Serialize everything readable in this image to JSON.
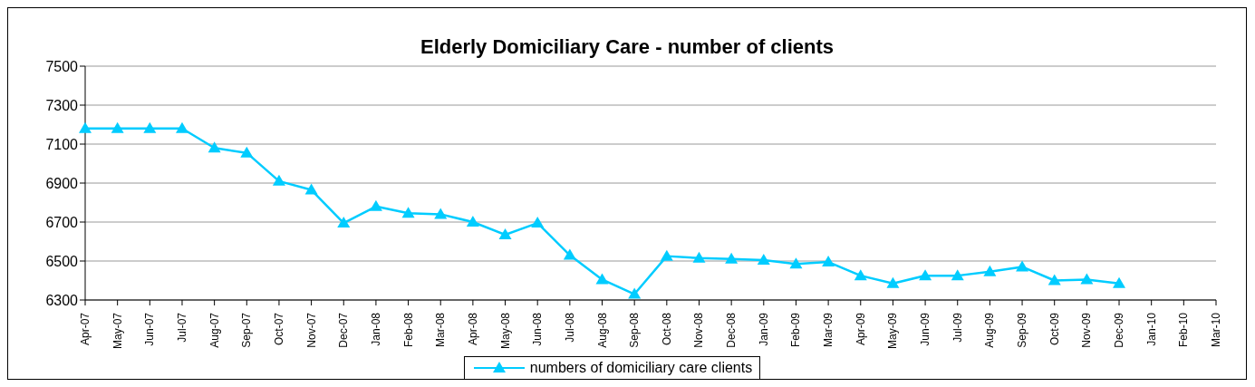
{
  "chart_data": {
    "type": "line",
    "title": "Elderly Domiciliary Care - number of clients",
    "categories": [
      "Apr-07",
      "May-07",
      "Jun-07",
      "Jul-07",
      "Aug-07",
      "Sep-07",
      "Oct-07",
      "Nov-07",
      "Dec-07",
      "Jan-08",
      "Feb-08",
      "Mar-08",
      "Apr-08",
      "May-08",
      "Jun-08",
      "Jul-08",
      "Aug-08",
      "Sep-08",
      "Oct-08",
      "Nov-08",
      "Dec-08",
      "Jan-09",
      "Feb-09",
      "Mar-09",
      "Apr-09",
      "May-09",
      "Jun-09",
      "Jul-09",
      "Aug-09",
      "Sep-09",
      "Oct-09",
      "Nov-09",
      "Dec-09",
      "Jan-10",
      "Feb-10",
      "Mar-10"
    ],
    "series": [
      {
        "name": "numbers of domiciliary care clients",
        "color": "#00ccff",
        "values": [
          7180,
          7180,
          7180,
          7180,
          7080,
          7055,
          6910,
          6865,
          6695,
          6780,
          6745,
          6740,
          6700,
          6635,
          6695,
          6530,
          6405,
          6330,
          6525,
          6515,
          6510,
          6505,
          6485,
          6495,
          6425,
          6385,
          6425,
          6425,
          6445,
          6470,
          6400,
          6405,
          6385,
          null,
          null,
          null
        ]
      }
    ],
    "ylim": [
      6300,
      7500
    ],
    "yticks": [
      6300,
      6500,
      6700,
      6900,
      7100,
      7300,
      7500
    ],
    "grid": "y",
    "legend": "bottom",
    "marker": "triangle",
    "line_style": "solid"
  }
}
